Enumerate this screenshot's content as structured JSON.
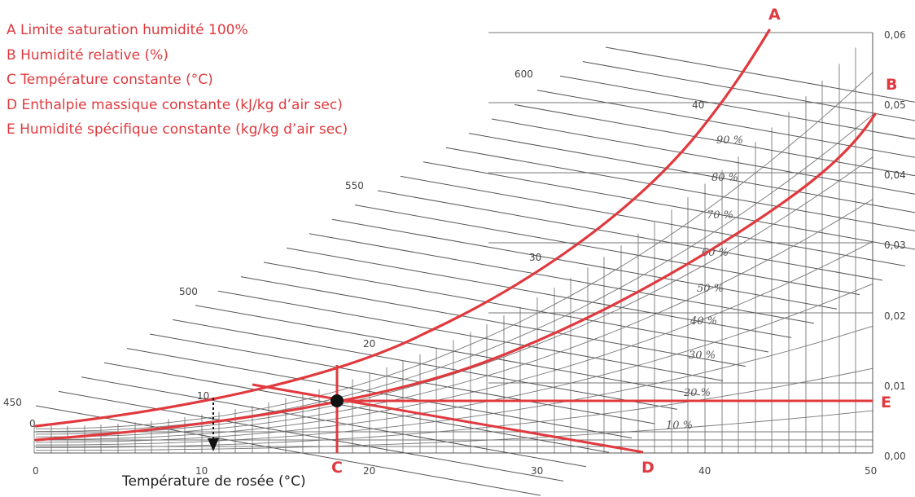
{
  "legend": {
    "a": "A Limite saturation humidité 100%",
    "b": "B Humidité relative (%)",
    "c": "C Température constante (°C)",
    "d": "D Enthalpie massique constante (kJ/kg d’air sec)",
    "e": "E  Humidité spécifique constante (kg/kg d’air sec)"
  },
  "curve_letters": {
    "a": "A",
    "b": "B",
    "c": "C",
    "d": "D",
    "e": "E"
  },
  "x_axis": {
    "ticks": [
      "0",
      "10",
      "20",
      "30",
      "40",
      "50"
    ],
    "label": "Température de rosée (°C)"
  },
  "y_axis_right": {
    "ticks": [
      "0,00",
      "0,01",
      "0,02",
      "0,03",
      "0,04",
      "0,05",
      "0,06"
    ]
  },
  "enthalpy_scale": [
    "450",
    "500",
    "550",
    "600"
  ],
  "saturation_temps": [
    "0",
    "10",
    "20",
    "30",
    "40"
  ],
  "rh_labels": [
    "10 %",
    "20 %",
    "30 %",
    "40 %",
    "50 %",
    "60 %",
    "70 %",
    "80 %",
    "90 %"
  ],
  "colors": {
    "accent": "#e0393e",
    "grid": "#555555",
    "point": "#111111"
  }
}
